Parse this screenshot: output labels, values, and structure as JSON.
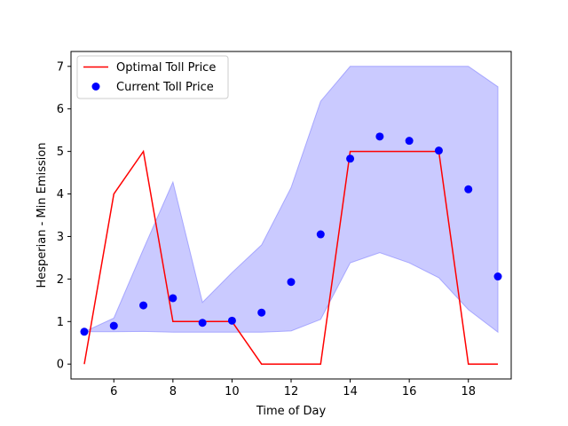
{
  "chart_data": {
    "type": "line",
    "xlabel": "Time of Day",
    "ylabel": "Hesperian - Min Emission",
    "xlim": [
      4.55,
      19.45
    ],
    "ylim": [
      -0.35,
      7.35
    ],
    "xticks": [
      6,
      8,
      10,
      12,
      14,
      16,
      18
    ],
    "yticks": [
      0,
      1,
      2,
      3,
      4,
      5,
      6,
      7
    ],
    "grid": false,
    "legend_position": "upper left",
    "colors": {
      "line": "#ff0000",
      "points": "#0000ff",
      "band_fill": "#b3b3ff",
      "band_edge": "#8080ff"
    },
    "series": [
      {
        "name": "Optimal Toll Price",
        "kind": "line",
        "x": [
          5,
          6,
          7,
          8,
          9,
          10,
          11,
          12,
          13,
          14,
          15,
          16,
          17,
          18,
          19
        ],
        "y": [
          0,
          4,
          5,
          1,
          1,
          1,
          0,
          0,
          0,
          5,
          5,
          5,
          5,
          0,
          0
        ]
      },
      {
        "name": "Current Toll Price",
        "kind": "scatter",
        "x": [
          5,
          6,
          7,
          8,
          9,
          10,
          11,
          12,
          13,
          14,
          15,
          16,
          17,
          18,
          19
        ],
        "y": [
          0.76,
          0.9,
          1.38,
          1.55,
          0.97,
          1.02,
          1.21,
          1.93,
          3.05,
          4.83,
          5.35,
          5.25,
          5.02,
          4.11,
          2.06
        ]
      }
    ],
    "band": {
      "x": [
        5,
        6,
        7,
        8,
        9,
        10,
        11,
        12,
        13,
        14,
        15,
        16,
        17,
        18,
        19
      ],
      "upper": [
        0.76,
        1.08,
        2.7,
        4.28,
        1.45,
        2.15,
        2.8,
        4.15,
        6.18,
        7.0,
        7.0,
        7.0,
        7.0,
        7.0,
        6.52
      ],
      "lower": [
        0.76,
        0.76,
        0.77,
        0.75,
        0.75,
        0.75,
        0.75,
        0.78,
        1.05,
        2.38,
        2.62,
        2.38,
        2.03,
        1.28,
        0.75
      ]
    }
  }
}
